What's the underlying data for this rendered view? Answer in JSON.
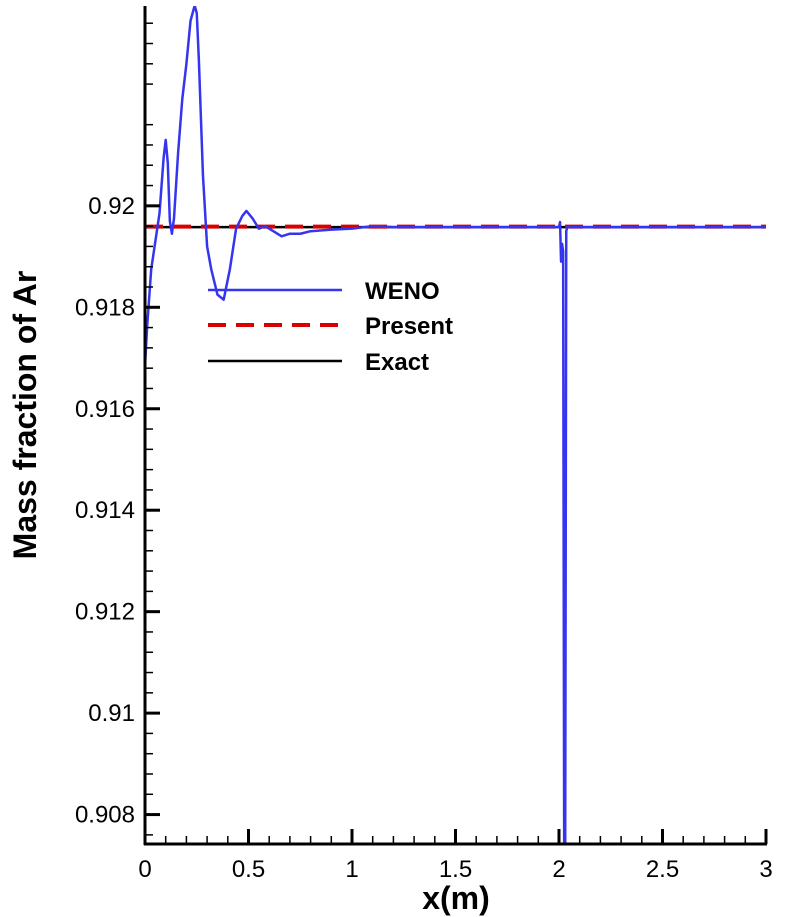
{
  "chart_data": {
    "type": "line",
    "title": "",
    "xlabel": "x(m)",
    "ylabel": "Mass fraction of Ar",
    "xlim": [
      0,
      3
    ],
    "ylim": [
      0.90742,
      0.9239
    ],
    "x_ticks": [
      0,
      0.5,
      1,
      1.5,
      2,
      2.5,
      3
    ],
    "x_tick_labels": [
      "0",
      "0.5",
      "1",
      "1.5",
      "2",
      "2.5",
      "3"
    ],
    "y_ticks": [
      0.908,
      0.91,
      0.912,
      0.914,
      0.916,
      0.918,
      0.92
    ],
    "y_tick_labels": [
      "0.908",
      "0.91",
      "0.912",
      "0.914",
      "0.916",
      "0.918",
      "0.92"
    ],
    "grid": false,
    "legend_position": "upper-left-inside",
    "series": [
      {
        "name": "WENO",
        "color": "#3535ef",
        "style": "solid",
        "x": [
          0,
          0.01,
          0.03,
          0.05,
          0.07,
          0.09,
          0.1,
          0.11,
          0.12,
          0.13,
          0.14,
          0.16,
          0.18,
          0.2,
          0.22,
          0.24,
          0.25,
          0.26,
          0.28,
          0.3,
          0.32,
          0.35,
          0.38,
          0.41,
          0.44,
          0.47,
          0.49,
          0.52,
          0.55,
          0.58,
          0.62,
          0.66,
          0.7,
          0.75,
          0.8,
          0.9,
          1.0,
          1.1,
          1.2,
          2.0,
          2.005,
          2.01,
          2.015,
          2.02,
          2.025,
          2.03,
          2.035,
          2.04,
          2.1,
          3.0
        ],
        "y": [
          0.91685,
          0.9176,
          0.91875,
          0.9193,
          0.91985,
          0.92095,
          0.9213,
          0.92085,
          0.9197,
          0.91945,
          0.91975,
          0.92105,
          0.9221,
          0.9228,
          0.92365,
          0.92395,
          0.9238,
          0.9229,
          0.9206,
          0.9192,
          0.91875,
          0.91825,
          0.91815,
          0.91875,
          0.91955,
          0.9198,
          0.9199,
          0.91975,
          0.91955,
          0.9196,
          0.9195,
          0.9194,
          0.91945,
          0.91945,
          0.9195,
          0.91953,
          0.91955,
          0.9196,
          0.91958,
          0.91958,
          0.91968,
          0.9189,
          0.91925,
          0.9191,
          0.9074,
          0.9074,
          0.9195,
          0.91958,
          0.91958,
          0.91958
        ]
      },
      {
        "name": "Present",
        "color": "#d80000",
        "style": "dashed",
        "x": [
          0,
          3
        ],
        "y": [
          0.91959,
          0.91959
        ]
      },
      {
        "name": "Exact",
        "color": "#000000",
        "style": "solid",
        "x": [
          0,
          3
        ],
        "y": [
          0.91958,
          0.91958
        ]
      }
    ]
  }
}
